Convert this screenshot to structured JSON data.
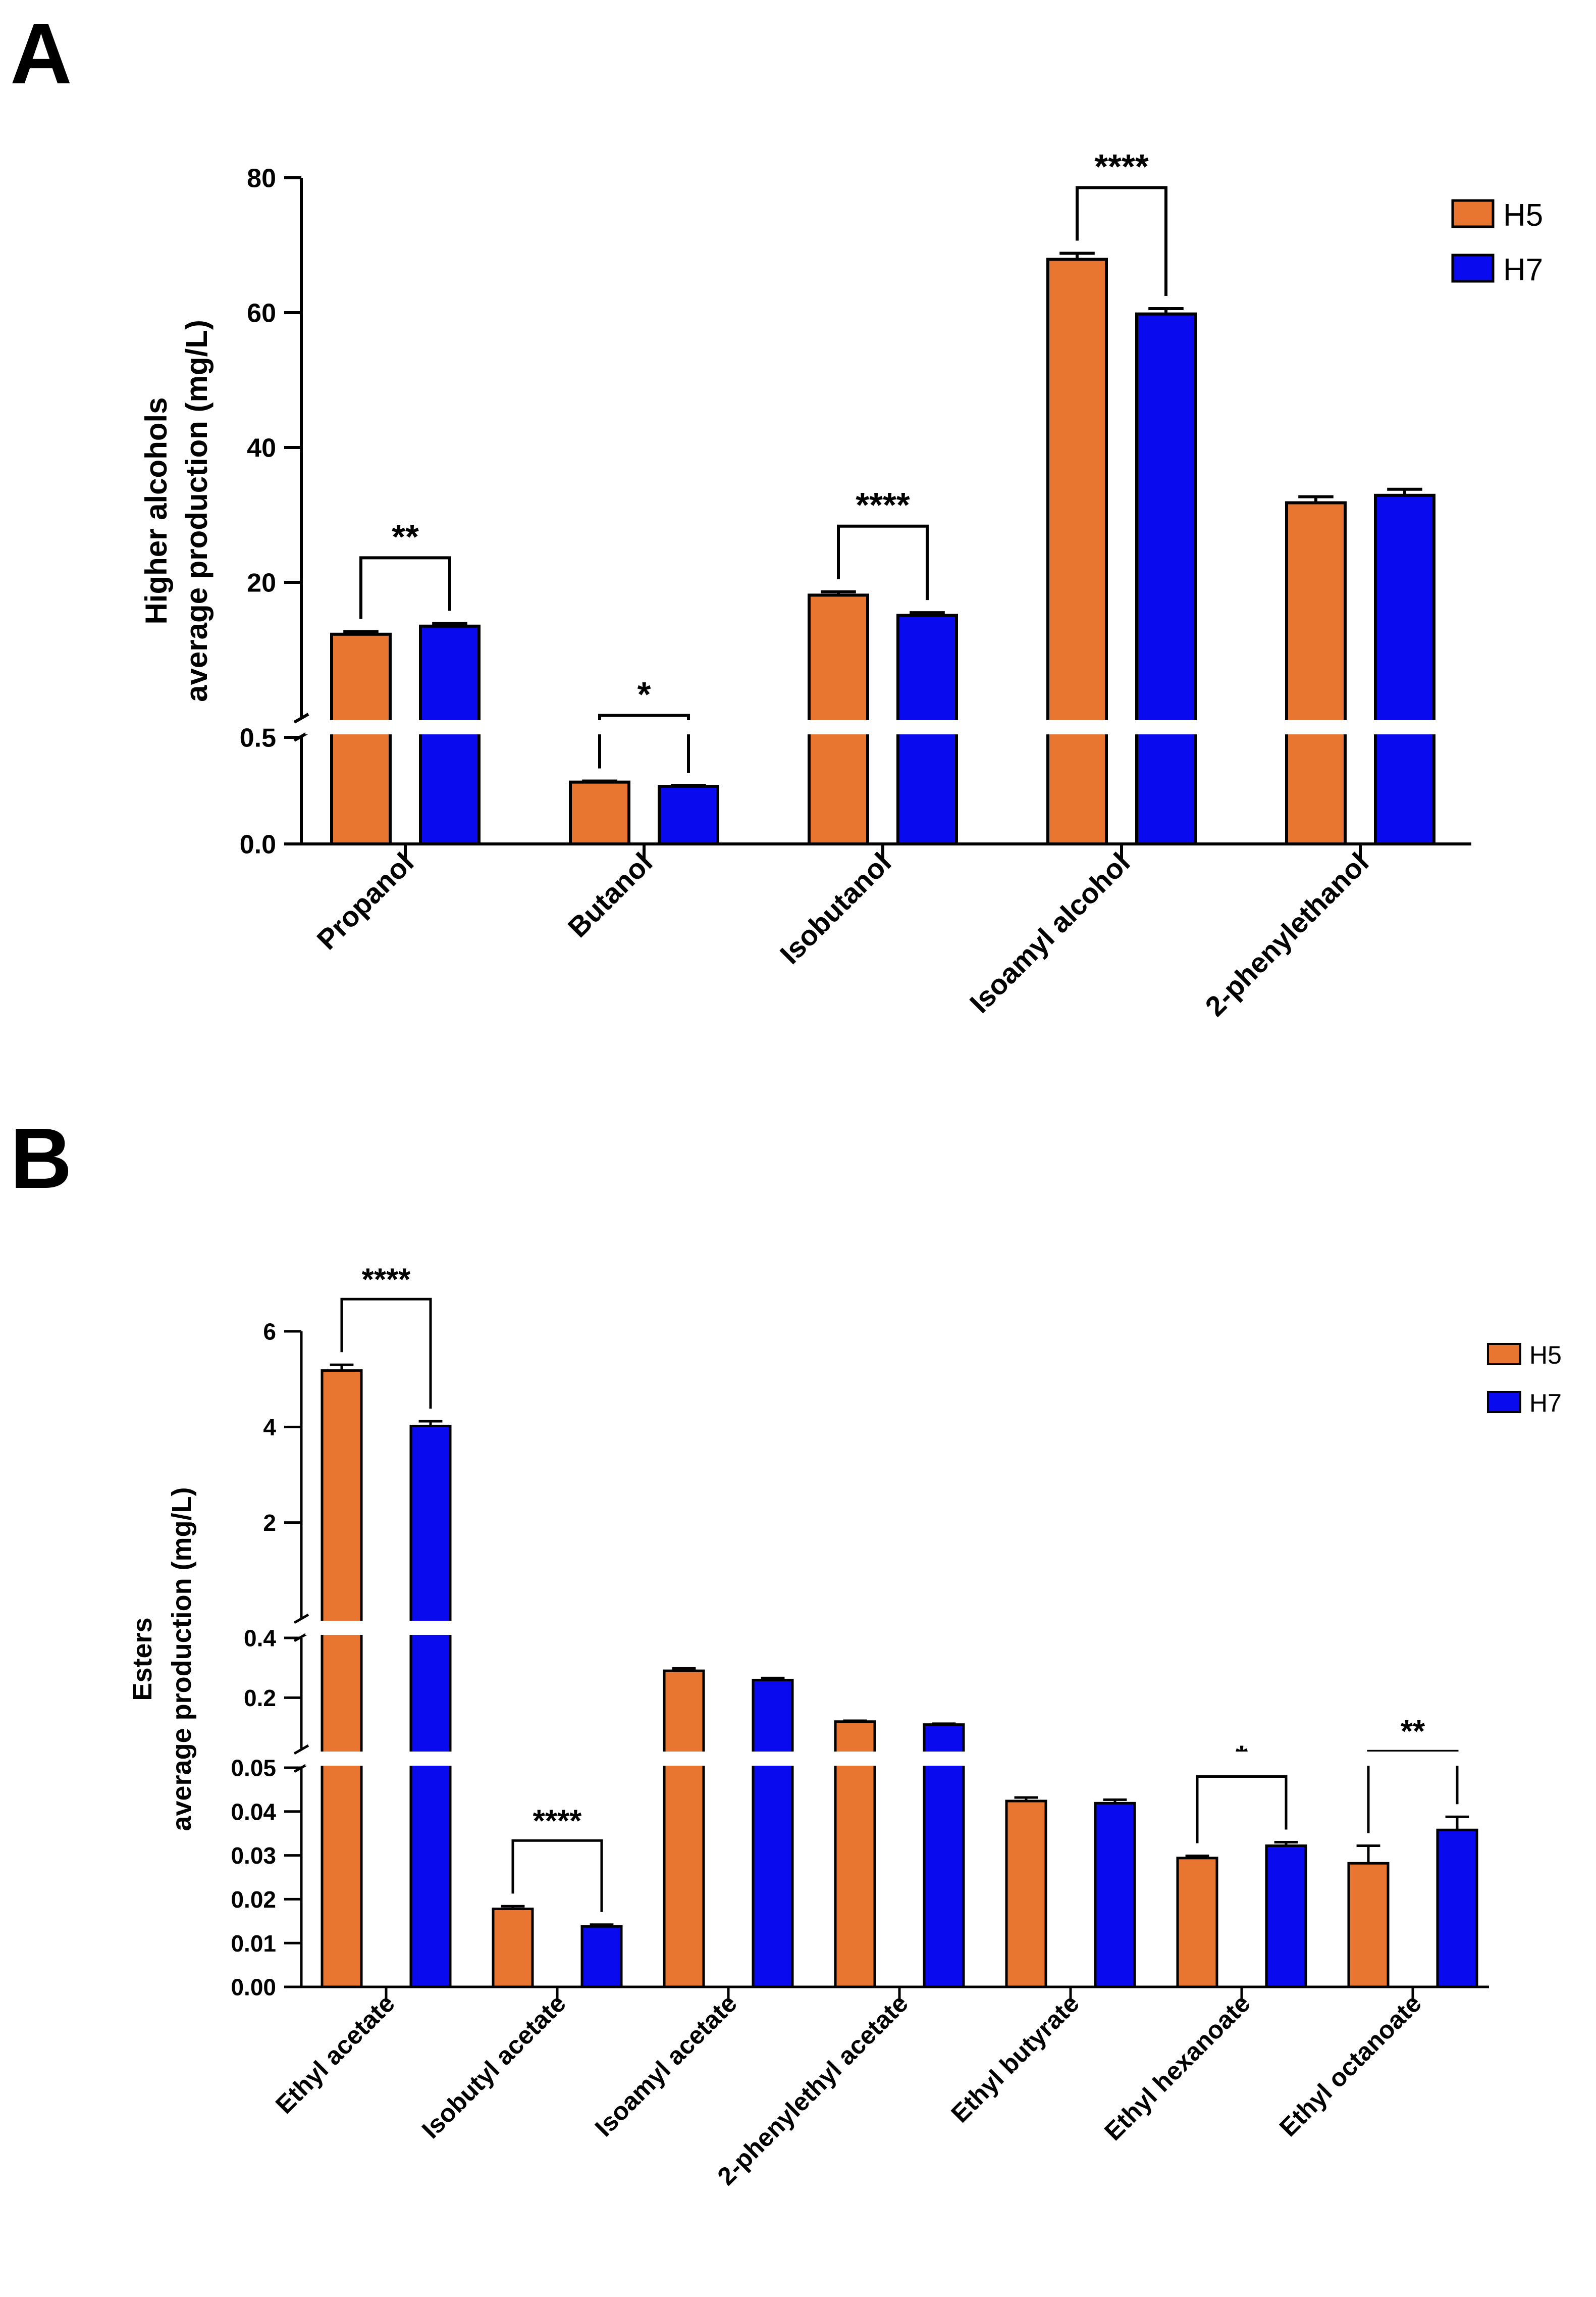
{
  "panels": [
    {
      "panel_letter": "A",
      "legend": [
        {
          "name": "H5",
          "color": "#E87530"
        },
        {
          "name": "H7",
          "color": "#0A0AEE"
        }
      ]
    },
    {
      "panel_letter": "B",
      "legend": [
        {
          "name": "H5",
          "color": "#E87530"
        },
        {
          "name": "H7",
          "color": "#0A0AEE"
        }
      ]
    }
  ],
  "chart_data": [
    {
      "type": "bar",
      "panel": "A",
      "title": "",
      "xlabel": "",
      "ylabel_lines": [
        "Higher alcohols",
        "average production (mg/L)"
      ],
      "categories": [
        "Propanol",
        "Butanol",
        "Isobutanol",
        "Isoamyl alcohol",
        "2-phenylethanol"
      ],
      "series": [
        {
          "name": "H5",
          "color": "#E87530",
          "values": [
            12.3,
            0.29,
            18.1,
            67.9,
            31.8
          ],
          "errors": [
            0.4,
            0.005,
            0.5,
            0.9,
            0.9
          ]
        },
        {
          "name": "H7",
          "color": "#0A0AEE",
          "values": [
            13.5,
            0.27,
            15.1,
            59.8,
            32.9
          ],
          "errors": [
            0.4,
            0.005,
            0.4,
            0.8,
            0.9
          ]
        }
      ],
      "y_segments": [
        {
          "range": [
            0,
            0.5
          ],
          "ticks": [
            0.0,
            0.5
          ],
          "tick_labels": [
            "0.0",
            "0.5"
          ]
        },
        {
          "range": [
            0,
            80
          ],
          "ticks": [
            20,
            40,
            60,
            80
          ],
          "tick_labels": [
            "20",
            "40",
            "60",
            "80"
          ]
        }
      ],
      "significance": [
        {
          "category_index": 0,
          "label": "**"
        },
        {
          "category_index": 1,
          "label": "*"
        },
        {
          "category_index": 2,
          "label": "****"
        },
        {
          "category_index": 3,
          "label": "****"
        }
      ],
      "legend_position": "top-right"
    },
    {
      "type": "bar",
      "panel": "B",
      "title": "",
      "xlabel": "",
      "ylabel_lines": [
        "Esters",
        "average production (mg/L)"
      ],
      "categories": [
        "Ethyl acetate",
        "Isobutyl acetate",
        "Isoamyl acetate",
        "2-phenylethyl acetate",
        "Ethyl butyrate",
        "Ethyl hexanoate",
        "Ethyl octanoate"
      ],
      "series": [
        {
          "name": "H5",
          "color": "#E87530",
          "values": [
            5.18,
            0.0178,
            0.29,
            0.12,
            0.0424,
            0.0294,
            0.0282
          ],
          "errors": [
            0.12,
            0.0006,
            0.008,
            0.003,
            0.0008,
            0.0005,
            0.004
          ]
        },
        {
          "name": "H7",
          "color": "#0A0AEE",
          "values": [
            4.02,
            0.0138,
            0.259,
            0.11,
            0.0419,
            0.0322,
            0.0358
          ],
          "errors": [
            0.1,
            0.0004,
            0.007,
            0.003,
            0.0008,
            0.0008,
            0.003
          ]
        }
      ],
      "y_segments": [
        {
          "range": [
            0,
            0.05
          ],
          "ticks": [
            0.0,
            0.01,
            0.02,
            0.03,
            0.04,
            0.05
          ],
          "tick_labels": [
            "0.00",
            "0.01",
            "0.02",
            "0.03",
            "0.04",
            "0.05"
          ]
        },
        {
          "range": [
            0.03,
            0.4
          ],
          "ticks": [
            0.2,
            0.4
          ],
          "tick_labels": [
            "0.2",
            "0.4"
          ]
        },
        {
          "range": [
            0,
            6
          ],
          "ticks": [
            2,
            4,
            6
          ],
          "tick_labels": [
            "2",
            "4",
            "6"
          ]
        }
      ],
      "significance": [
        {
          "category_index": 0,
          "label": "****"
        },
        {
          "category_index": 1,
          "label": "****"
        },
        {
          "category_index": 5,
          "label": "*"
        },
        {
          "category_index": 6,
          "label": "**"
        }
      ],
      "legend_position": "top-right"
    }
  ]
}
